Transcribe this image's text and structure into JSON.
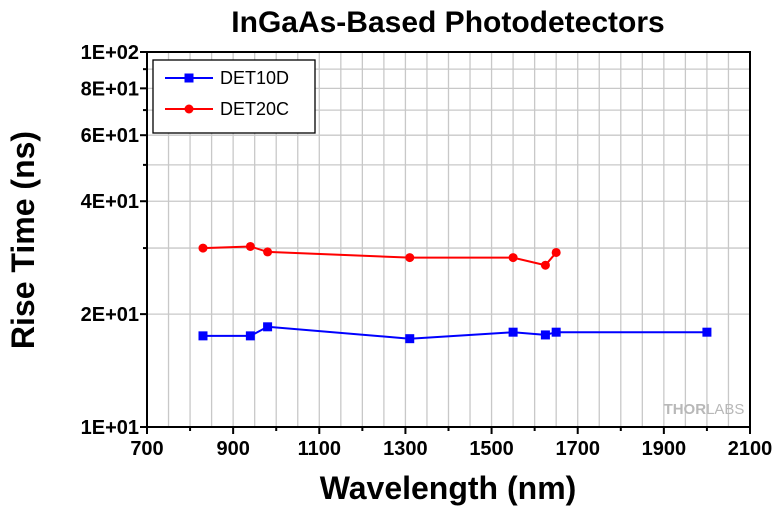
{
  "chart_data": {
    "type": "line",
    "title": "InGaAs-Based Photodetectors",
    "xlabel": "Wavelength (nm)",
    "ylabel": "Rise Time (ns)",
    "xlim": [
      700,
      2100
    ],
    "ylim": [
      10,
      100
    ],
    "yscale": "log",
    "grid": true,
    "legend_position": "top-left",
    "x_ticks": [
      700,
      900,
      1100,
      1300,
      1500,
      1700,
      1900,
      2100
    ],
    "x_tick_labels": [
      "700",
      "900",
      "1100",
      "1300",
      "1500",
      "1700",
      "1900",
      "2100"
    ],
    "y_ticks": [
      10,
      20,
      40,
      60,
      80,
      100
    ],
    "y_tick_labels": [
      "1E+01",
      "2E+01",
      "4E+01",
      "6E+01",
      "8E+01",
      "1E+02"
    ],
    "series": [
      {
        "name": "DET10D",
        "color": "#0000ff",
        "marker": "square",
        "x": [
          830,
          940,
          980,
          1310,
          1550,
          1625,
          1650,
          2000
        ],
        "y": [
          17.5,
          17.5,
          18.5,
          17.2,
          17.9,
          17.6,
          17.9,
          17.9
        ]
      },
      {
        "name": "DET20C",
        "color": "#ff0000",
        "marker": "circle",
        "x": [
          830,
          940,
          980,
          1310,
          1550,
          1625,
          1650
        ],
        "y": [
          30.0,
          30.3,
          29.3,
          28.3,
          28.3,
          27.0,
          29.2
        ]
      }
    ]
  },
  "watermark": {
    "part1": "THOR",
    "part2": "LABS"
  }
}
